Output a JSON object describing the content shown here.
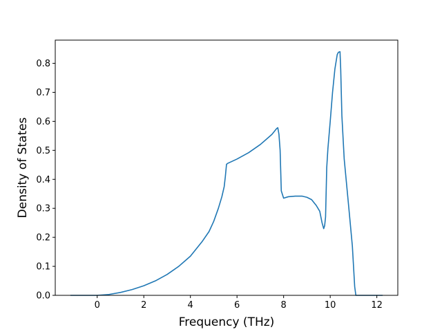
{
  "chart_data": {
    "type": "line",
    "title": "",
    "xlabel": "Frequency (THz)",
    "ylabel": "Density of States",
    "xlim": [
      -1.8,
      12.9
    ],
    "ylim": [
      0.0,
      0.88
    ],
    "xticks": [
      0,
      2,
      4,
      6,
      8,
      10,
      12
    ],
    "yticks": [
      0.0,
      0.1,
      0.2,
      0.3,
      0.4,
      0.5,
      0.6,
      0.7,
      0.8
    ],
    "grid": false,
    "legend": "none",
    "series": [
      {
        "color": "#1f77b4",
        "x": [
          -1.15,
          -0.5,
          0.0,
          0.5,
          1.0,
          1.5,
          2.0,
          2.5,
          3.0,
          3.5,
          4.0,
          4.5,
          4.8,
          5.0,
          5.2,
          5.35,
          5.45,
          5.5,
          5.55,
          5.6,
          6.0,
          6.5,
          7.0,
          7.5,
          7.7,
          7.75,
          7.8,
          7.85,
          7.9,
          8.0,
          8.2,
          8.5,
          8.8,
          9.0,
          9.2,
          9.4,
          9.55,
          9.65,
          9.72,
          9.76,
          9.8,
          9.85,
          9.9,
          10.0,
          10.1,
          10.2,
          10.3,
          10.35,
          10.42,
          10.45,
          10.5,
          10.6,
          10.8,
          10.95,
          11.05,
          11.1,
          11.2,
          12.0,
          12.25
        ],
        "y": [
          0.0,
          0.0,
          0.0,
          0.003,
          0.01,
          0.02,
          0.033,
          0.05,
          0.072,
          0.1,
          0.135,
          0.185,
          0.22,
          0.255,
          0.3,
          0.34,
          0.375,
          0.41,
          0.452,
          0.455,
          0.47,
          0.492,
          0.52,
          0.555,
          0.575,
          0.578,
          0.555,
          0.5,
          0.36,
          0.335,
          0.34,
          0.342,
          0.342,
          0.338,
          0.33,
          0.31,
          0.29,
          0.25,
          0.23,
          0.24,
          0.27,
          0.44,
          0.505,
          0.6,
          0.7,
          0.78,
          0.83,
          0.838,
          0.84,
          0.78,
          0.62,
          0.47,
          0.3,
          0.17,
          0.03,
          0.0,
          0.0,
          0.0,
          0.0
        ]
      }
    ]
  }
}
